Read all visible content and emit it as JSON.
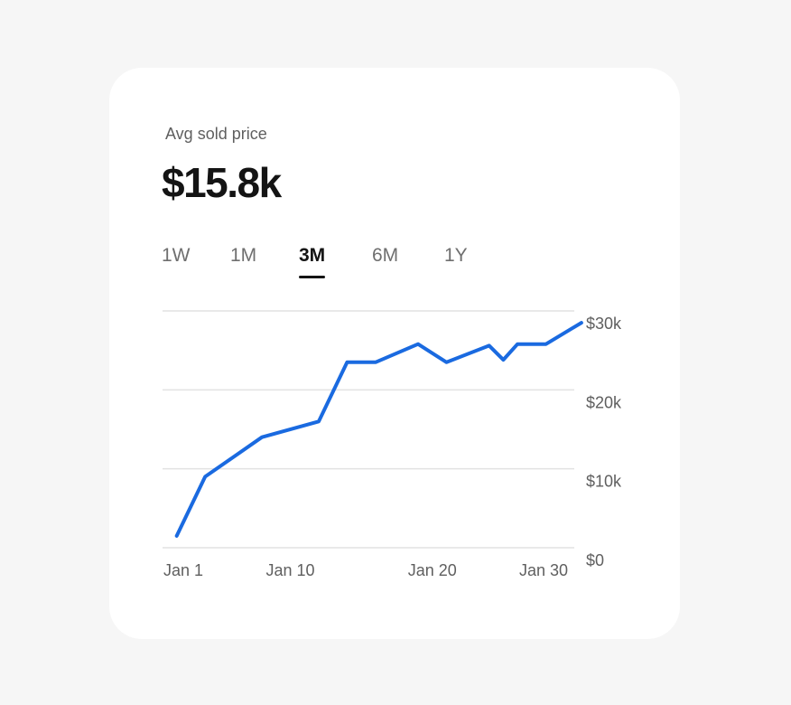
{
  "header": {
    "label": "Avg sold price",
    "value": "$15.8k"
  },
  "tabs": [
    {
      "label": "1W",
      "active": false
    },
    {
      "label": "1M",
      "active": false
    },
    {
      "label": "3M",
      "active": true
    },
    {
      "label": "6M",
      "active": false
    },
    {
      "label": "1Y",
      "active": false
    }
  ],
  "colors": {
    "line": "#1a6ae0",
    "grid": "#e2e2e2",
    "text_muted": "#5f5f5f",
    "card_bg": "#ffffff",
    "page_bg": "#f6f6f6"
  },
  "chart_data": {
    "type": "line",
    "x_tick_labels": [
      "Jan 1",
      "Jan 10",
      "Jan 20",
      "Jan 30"
    ],
    "x_tick_values": [
      1,
      10,
      20,
      30
    ],
    "y_tick_labels": [
      "$30k",
      "$20k",
      "$10k",
      "$0"
    ],
    "y_tick_values": [
      30000,
      20000,
      10000,
      0
    ],
    "xlim": [
      1,
      30
    ],
    "ylim": [
      0,
      30000
    ],
    "grid": true,
    "series": [
      {
        "x": [
          2,
          4,
          8,
          12,
          14,
          16,
          19,
          21,
          24,
          25,
          26,
          28,
          30.5
        ],
        "y": [
          1500,
          9000,
          14000,
          16000,
          23500,
          23500,
          25800,
          23500,
          25600,
          23800,
          25800,
          25800,
          28500
        ]
      }
    ]
  }
}
